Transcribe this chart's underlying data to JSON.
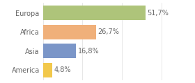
{
  "categories": [
    "America",
    "Asia",
    "Africa",
    "Europa"
  ],
  "values": [
    4.8,
    16.8,
    26.7,
    51.7
  ],
  "labels": [
    "4,8%",
    "16,8%",
    "26,7%",
    "51,7%"
  ],
  "bar_colors": [
    "#f2c84b",
    "#7b96c8",
    "#f0b07a",
    "#aec47a"
  ],
  "background_color": "#ffffff",
  "xlim": [
    0,
    65
  ],
  "bar_height": 0.75,
  "label_fontsize": 7.0,
  "tick_fontsize": 7.0,
  "tick_color": "#666666",
  "label_color": "#666666",
  "grid_color": "#dddddd"
}
